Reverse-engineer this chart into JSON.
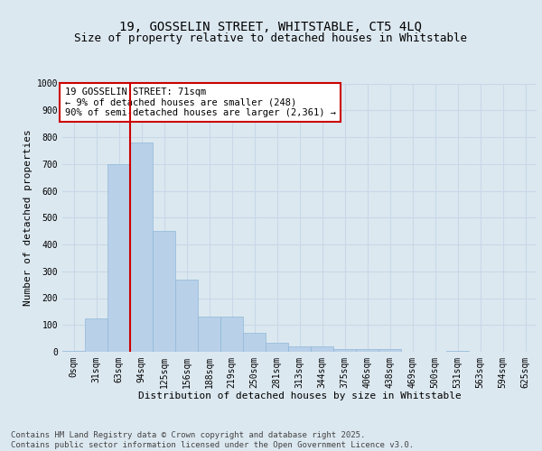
{
  "title1": "19, GOSSELIN STREET, WHITSTABLE, CT5 4LQ",
  "title2": "Size of property relative to detached houses in Whitstable",
  "xlabel": "Distribution of detached houses by size in Whitstable",
  "ylabel": "Number of detached properties",
  "categories": [
    "0sqm",
    "31sqm",
    "63sqm",
    "94sqm",
    "125sqm",
    "156sqm",
    "188sqm",
    "219sqm",
    "250sqm",
    "281sqm",
    "313sqm",
    "344sqm",
    "375sqm",
    "406sqm",
    "438sqm",
    "469sqm",
    "500sqm",
    "531sqm",
    "563sqm",
    "594sqm",
    "625sqm"
  ],
  "values": [
    5,
    125,
    700,
    780,
    450,
    270,
    130,
    130,
    70,
    35,
    20,
    20,
    10,
    10,
    10,
    0,
    0,
    5,
    0,
    0,
    0
  ],
  "bar_color": "#b8d0e8",
  "bar_edge_color": "#90b8d8",
  "grid_color": "#c8d8e8",
  "background_color": "#dce8f0",
  "vline_color": "#cc0000",
  "vline_pos": 2.5,
  "annotation_text": "19 GOSSELIN STREET: 71sqm\n← 9% of detached houses are smaller (248)\n90% of semi-detached houses are larger (2,361) →",
  "annotation_box_color": "#ffffff",
  "annotation_edge_color": "#cc0000",
  "ylim": [
    0,
    1000
  ],
  "yticks": [
    0,
    100,
    200,
    300,
    400,
    500,
    600,
    700,
    800,
    900,
    1000
  ],
  "footer": "Contains HM Land Registry data © Crown copyright and database right 2025.\nContains public sector information licensed under the Open Government Licence v3.0.",
  "title_fontsize": 10,
  "subtitle_fontsize": 9,
  "axis_label_fontsize": 8,
  "tick_fontsize": 7,
  "annotation_fontsize": 7.5,
  "footer_fontsize": 6.5
}
